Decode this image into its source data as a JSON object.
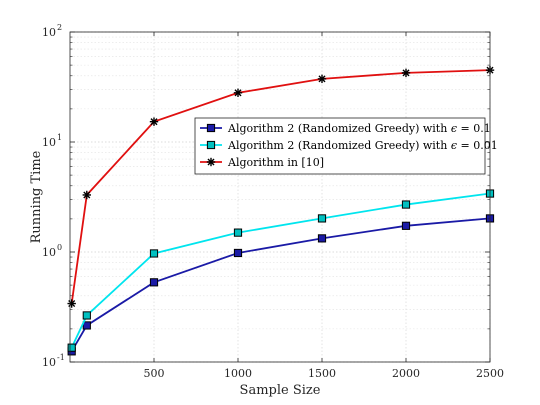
{
  "chart_data": {
    "type": "line",
    "xlabel": "Sample Size",
    "ylabel": "Running Time",
    "xscale": "linear",
    "yscale": "log",
    "xlim": [
      0,
      2500
    ],
    "ylim": [
      0.1,
      100
    ],
    "xticks": [
      500,
      1000,
      1500,
      2000,
      2500
    ],
    "xtick_labels": [
      "500",
      "1000",
      "1500",
      "2000",
      "2500"
    ],
    "yticks": [
      0.1,
      1,
      10,
      100
    ],
    "ytick_labels": [
      {
        "base": "10",
        "exp": "-1"
      },
      {
        "base": "10",
        "exp": "0"
      },
      {
        "base": "10",
        "exp": "1"
      },
      {
        "base": "10",
        "exp": "2"
      }
    ],
    "grid": true,
    "legend_position": "upper-right (inside)",
    "x": [
      10,
      100,
      500,
      1000,
      1500,
      2000,
      2500
    ],
    "series": [
      {
        "name": "Algorithm 2 (Randomized Greedy) with ϵ = 0.1",
        "legend_parts": [
          "Algorithm 2 (Randomized Greedy) with ",
          "ϵ",
          " = 0.1"
        ],
        "color": "#1a1aa6",
        "marker": "square",
        "marker_fill": "#1a1aa6",
        "values": [
          0.125,
          0.215,
          0.53,
          0.98,
          1.33,
          1.73,
          2.02
        ]
      },
      {
        "name": "Algorithm 2 (Randomized Greedy) with ϵ = 0.01",
        "legend_parts": [
          "Algorithm 2 (Randomized Greedy) with ",
          "ϵ",
          " = 0.01"
        ],
        "color": "#00e5ee",
        "marker": "square",
        "marker_fill": "#00c0c0",
        "values": [
          0.135,
          0.265,
          0.97,
          1.5,
          2.02,
          2.7,
          3.4
        ]
      },
      {
        "name": "Algorithm in [10]",
        "legend_parts": [
          "Algorithm in [10]",
          "",
          ""
        ],
        "color": "#e01010",
        "marker": "asterisk",
        "marker_fill": "#000000",
        "values": [
          0.34,
          3.3,
          15.3,
          28.0,
          37.5,
          42.5,
          45.0
        ]
      }
    ]
  }
}
